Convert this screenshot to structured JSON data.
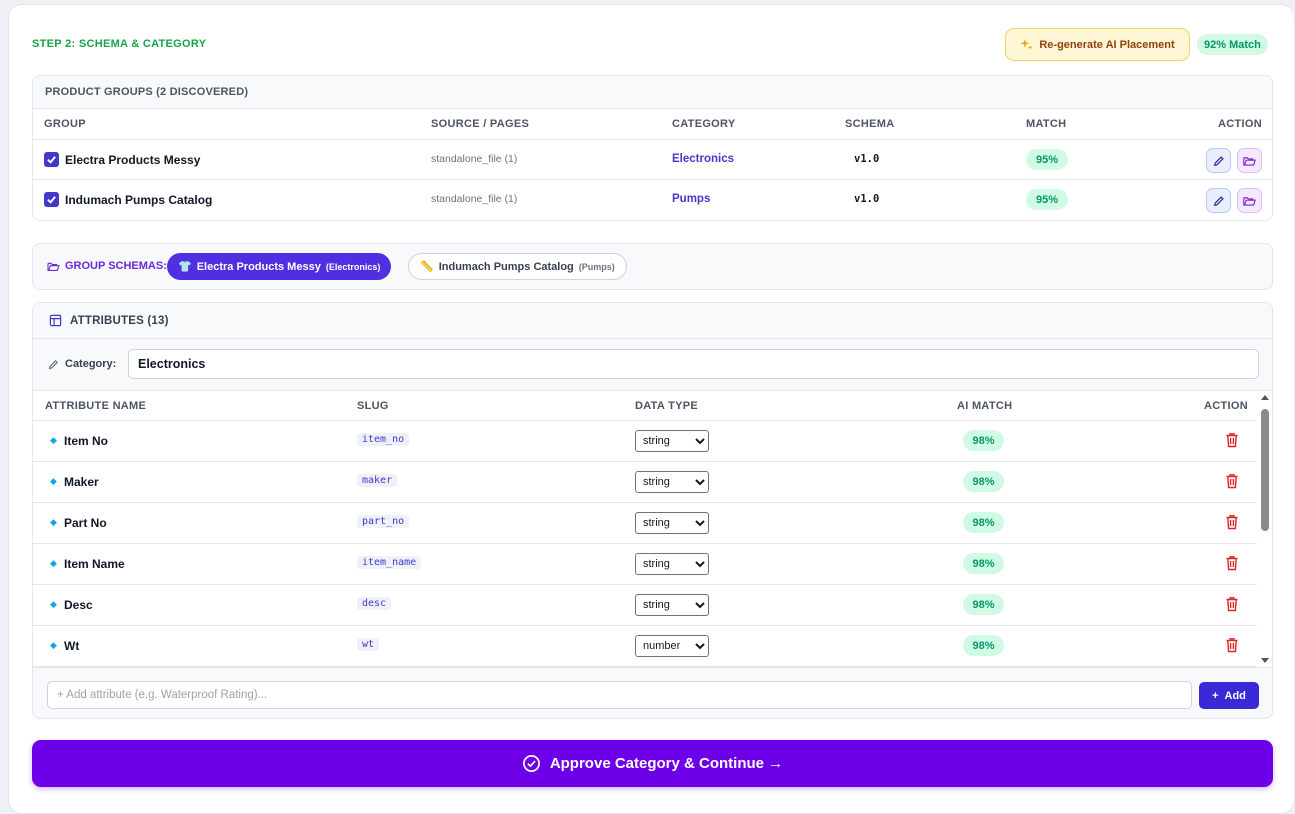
{
  "header": {
    "step_title": "STEP 2: SCHEMA & CATEGORY",
    "regenerate_label": "Re-generate AI Placement",
    "match_label": "92% Match",
    "accent_color": "#16a34a"
  },
  "groups": {
    "title": "PRODUCT GROUPS (2 DISCOVERED)",
    "columns": {
      "group": "GROUP",
      "source": "SOURCE / PAGES",
      "category": "CATEGORY",
      "schema": "SCHEMA",
      "match": "MATCH",
      "action": "ACTION"
    },
    "rows": [
      {
        "name": "Electra Products Messy",
        "source": "standalone_file (1)",
        "category": "Electronics",
        "schema": "v1.0",
        "match": "95%",
        "checked": true
      },
      {
        "name": "Indumach Pumps Catalog",
        "source": "standalone_file (1)",
        "category": "Pumps",
        "schema": "v1.0",
        "match": "95%",
        "checked": true
      }
    ]
  },
  "group_schemas": {
    "label": "GROUP SCHEMAS:",
    "chips": [
      {
        "icon": "shirt-icon",
        "emoji": "👕",
        "name": "Electra Products Messy",
        "sub": "(Electronics)",
        "active": true
      },
      {
        "icon": "ruler-icon",
        "emoji": "📏",
        "name": "Indumach Pumps Catalog",
        "sub": "(Pumps)",
        "active": false
      }
    ]
  },
  "attributes": {
    "title": "ATTRIBUTES (13)",
    "category_label": "Category:",
    "category_value": "Electronics",
    "columns": {
      "name": "ATTRIBUTE NAME",
      "slug": "SLUG",
      "type": "DATA TYPE",
      "match": "AI MATCH",
      "action": "ACTION"
    },
    "type_options": [
      "string",
      "number"
    ],
    "rows": [
      {
        "name": "Item No",
        "slug": "item_no",
        "type": "string",
        "match": "98%"
      },
      {
        "name": "Maker",
        "slug": "maker",
        "type": "string",
        "match": "98%"
      },
      {
        "name": "Part No",
        "slug": "part_no",
        "type": "string",
        "match": "98%"
      },
      {
        "name": "Item Name",
        "slug": "item_name",
        "type": "string",
        "match": "98%"
      },
      {
        "name": "Desc",
        "slug": "desc",
        "type": "string",
        "match": "98%"
      },
      {
        "name": "Wt",
        "slug": "wt",
        "type": "number",
        "match": "98%"
      }
    ],
    "add_placeholder": "+ Add attribute (e.g. Waterproof Rating)...",
    "add_label": "Add"
  },
  "footer": {
    "approve_label": "Approve Category & Continue →"
  }
}
